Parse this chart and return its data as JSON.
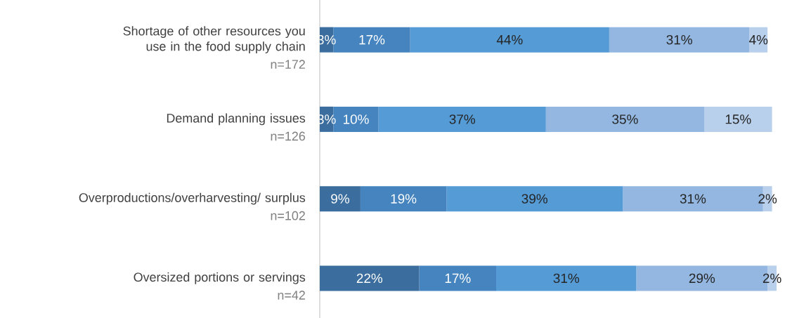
{
  "chart_data": {
    "type": "bar",
    "orientation": "horizontal",
    "stacked": true,
    "tick_labels": "y",
    "categories": [
      "Shortage of other resources you use in the food supply chain",
      "Demand planning issues",
      "Overproductions/overharvesting/ surplus",
      "Oversized portions or servings"
    ],
    "annotations": [
      "n=172",
      "n=126",
      "n=102",
      "n=42"
    ],
    "series": [
      {
        "color": "#3b6e9e",
        "values": [
          3,
          3,
          9,
          22
        ],
        "value_labels": [
          "3%",
          "3%",
          "9%",
          "22%"
        ]
      },
      {
        "color": "#4584bf",
        "values": [
          17,
          10,
          19,
          17
        ],
        "value_labels": [
          "17%",
          "10%",
          "19%",
          "17%"
        ]
      },
      {
        "color": "#559bd6",
        "values": [
          44,
          37,
          39,
          31
        ],
        "value_labels": [
          "44%",
          "37%",
          "39%",
          "31%"
        ]
      },
      {
        "color": "#93b7e0",
        "values": [
          31,
          35,
          31,
          29
        ],
        "value_labels": [
          "31%",
          "35%",
          "31%",
          "29%"
        ]
      },
      {
        "color": "#b9d0ec",
        "values": [
          4,
          15,
          2,
          2
        ],
        "value_labels": [
          "4%",
          "15%",
          "2%",
          "2%"
        ]
      }
    ]
  }
}
